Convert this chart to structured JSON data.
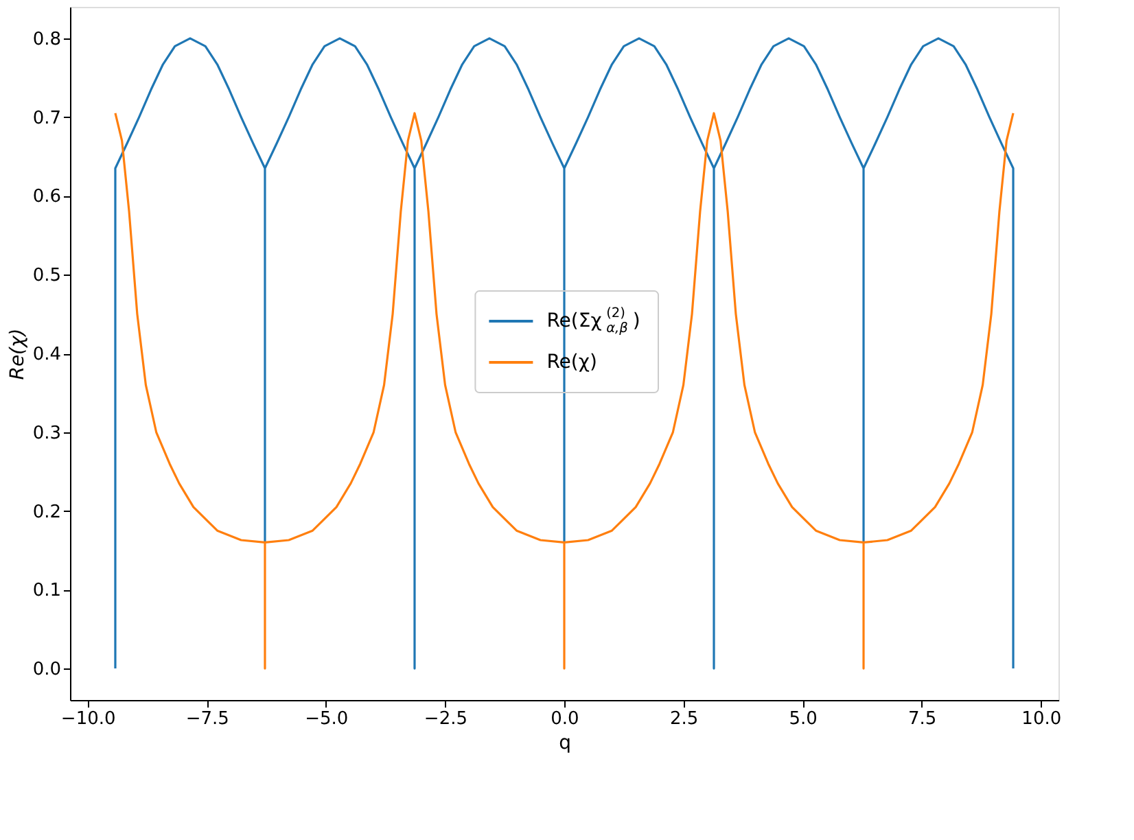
{
  "chart_data": {
    "type": "line",
    "xlabel": "q",
    "ylabel": "Re(χ)",
    "xlim": [
      -10.37,
      10.37
    ],
    "ylim": [
      -0.04,
      0.84
    ],
    "xticks": [
      {
        "value": -10,
        "label": "−10.0"
      },
      {
        "value": -7.5,
        "label": "−7.5"
      },
      {
        "value": -5,
        "label": "−5.0"
      },
      {
        "value": -2.5,
        "label": "−2.5"
      },
      {
        "value": 0,
        "label": "0.0"
      },
      {
        "value": 2.5,
        "label": "2.5"
      },
      {
        "value": 5,
        "label": "5.0"
      },
      {
        "value": 7.5,
        "label": "7.5"
      },
      {
        "value": 10,
        "label": "10.0"
      }
    ],
    "yticks": [
      {
        "value": 0,
        "label": "0.0"
      },
      {
        "value": 0.1,
        "label": "0.1"
      },
      {
        "value": 0.2,
        "label": "0.2"
      },
      {
        "value": 0.3,
        "label": "0.3"
      },
      {
        "value": 0.4,
        "label": "0.4"
      },
      {
        "value": 0.5,
        "label": "0.5"
      },
      {
        "value": 0.6,
        "label": "0.6"
      },
      {
        "value": 0.7,
        "label": "0.7"
      },
      {
        "value": 0.8,
        "label": "0.8"
      }
    ],
    "grid": false,
    "legend": "center",
    "marker": "none",
    "line_style": "solid",
    "series": [
      {
        "name": "Re(Σχ$^{(2)}$$_{α,β}$)",
        "color": "#1f77b4",
        "x": [
          -9.42,
          -9.42,
          -9.17,
          -8.92,
          -8.67,
          -8.42,
          -8.17,
          -7.85,
          -7.53,
          -7.28,
          -7.03,
          -6.78,
          -6.53,
          -6.28,
          -6.28,
          -6.28,
          -6.03,
          -5.78,
          -5.53,
          -5.28,
          -5.03,
          -4.71,
          -4.39,
          -4.14,
          -3.89,
          -3.64,
          -3.39,
          -3.14,
          -3.14,
          -3.14,
          -2.89,
          -2.64,
          -2.39,
          -2.14,
          -1.89,
          -1.57,
          -1.25,
          -1.0,
          -0.75,
          -0.5,
          -0.25,
          0,
          0,
          0,
          0.25,
          0.5,
          0.75,
          1.0,
          1.25,
          1.57,
          1.89,
          2.14,
          2.39,
          2.64,
          2.89,
          3.14,
          3.14,
          3.14,
          3.39,
          3.64,
          3.89,
          4.14,
          4.39,
          4.71,
          5.03,
          5.28,
          5.53,
          5.78,
          6.03,
          6.28,
          6.28,
          6.28,
          6.53,
          6.78,
          7.03,
          7.28,
          7.53,
          7.85,
          8.17,
          8.42,
          8.67,
          8.92,
          9.17,
          9.42,
          9.42
        ],
        "values": [
          0,
          0.635,
          0.667,
          0.7,
          0.735,
          0.767,
          0.79,
          0.8,
          0.79,
          0.767,
          0.735,
          0.7,
          0.667,
          0.635,
          0.16,
          0.635,
          0.667,
          0.7,
          0.735,
          0.767,
          0.79,
          0.8,
          0.79,
          0.767,
          0.735,
          0.7,
          0.667,
          0.635,
          0,
          0.635,
          0.667,
          0.7,
          0.735,
          0.767,
          0.79,
          0.8,
          0.79,
          0.767,
          0.735,
          0.7,
          0.667,
          0.635,
          0.16,
          0.635,
          0.667,
          0.7,
          0.735,
          0.767,
          0.79,
          0.8,
          0.79,
          0.767,
          0.735,
          0.7,
          0.667,
          0.635,
          0,
          0.635,
          0.667,
          0.7,
          0.735,
          0.767,
          0.79,
          0.8,
          0.79,
          0.767,
          0.735,
          0.7,
          0.667,
          0.635,
          0.16,
          0.635,
          0.667,
          0.7,
          0.735,
          0.767,
          0.79,
          0.8,
          0.79,
          0.767,
          0.735,
          0.7,
          0.667,
          0.635,
          0
        ]
      },
      {
        "name": "Re(χ)",
        "color": "#ff7f0e",
        "x": [
          -9.42,
          -9.28,
          -9.13,
          -8.96,
          -8.78,
          -8.56,
          -8.28,
          -8.08,
          -7.78,
          -7.28,
          -6.78,
          -6.28,
          -6.28,
          -6.28,
          -5.78,
          -5.28,
          -4.78,
          -4.48,
          -4.28,
          -4.0,
          -3.78,
          -3.6,
          -3.43,
          -3.28,
          -3.14,
          -3.0,
          -2.85,
          -2.68,
          -2.5,
          -2.28,
          -2.0,
          -1.8,
          -1.5,
          -1.0,
          -0.5,
          0,
          0,
          0,
          0.5,
          1.0,
          1.5,
          1.8,
          2.0,
          2.28,
          2.5,
          2.68,
          2.85,
          3.0,
          3.14,
          3.28,
          3.43,
          3.6,
          3.78,
          4.0,
          4.28,
          4.48,
          4.78,
          5.28,
          5.78,
          6.28,
          6.28,
          6.28,
          6.78,
          7.28,
          7.78,
          8.08,
          8.28,
          8.56,
          8.78,
          8.96,
          9.13,
          9.28,
          9.42
        ],
        "values": [
          0.705,
          0.67,
          0.58,
          0.45,
          0.36,
          0.3,
          0.26,
          0.235,
          0.205,
          0.175,
          0.163,
          0.16,
          0,
          0.16,
          0.163,
          0.175,
          0.205,
          0.235,
          0.26,
          0.3,
          0.36,
          0.45,
          0.58,
          0.67,
          0.705,
          0.67,
          0.58,
          0.45,
          0.36,
          0.3,
          0.26,
          0.235,
          0.205,
          0.175,
          0.163,
          0.16,
          0,
          0.16,
          0.163,
          0.175,
          0.205,
          0.235,
          0.26,
          0.3,
          0.36,
          0.45,
          0.58,
          0.67,
          0.705,
          0.67,
          0.58,
          0.45,
          0.36,
          0.3,
          0.26,
          0.235,
          0.205,
          0.175,
          0.163,
          0.16,
          0,
          0.16,
          0.163,
          0.175,
          0.205,
          0.235,
          0.26,
          0.3,
          0.36,
          0.45,
          0.58,
          0.67,
          0.705
        ]
      }
    ]
  }
}
